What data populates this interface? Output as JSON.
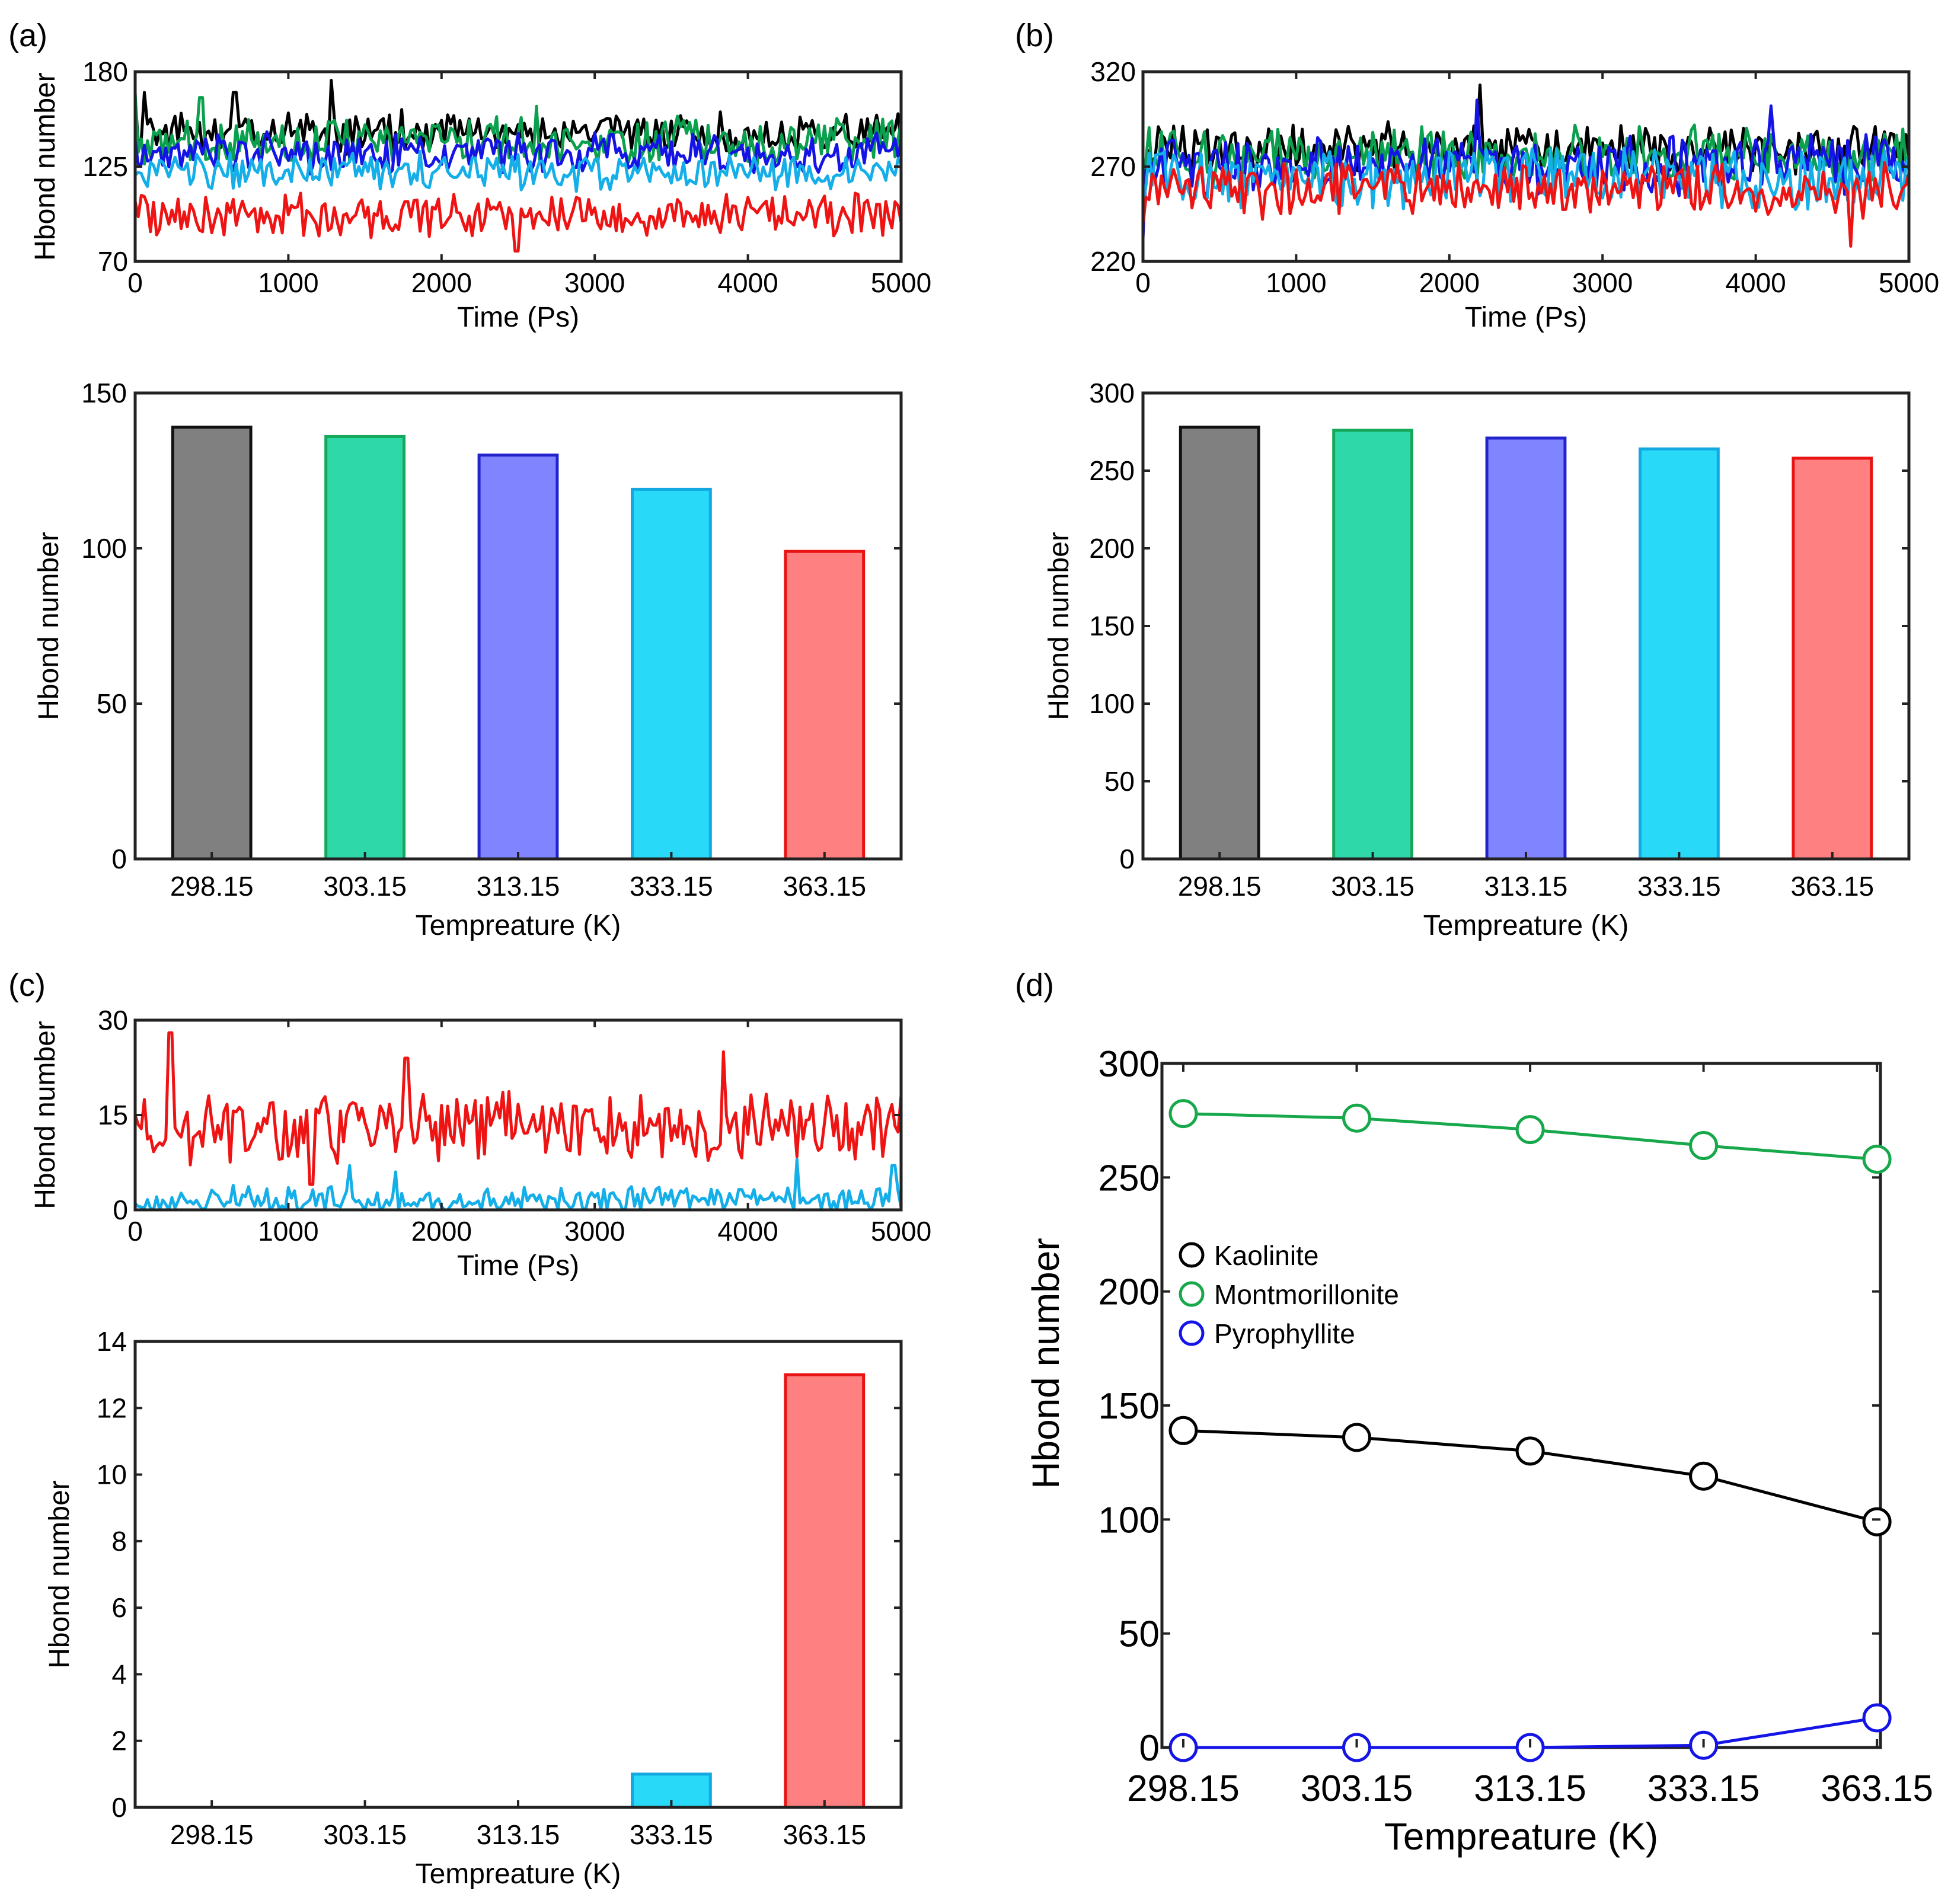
{
  "panels": {
    "a": {
      "label": "(a)"
    },
    "b": {
      "label": "(b)"
    },
    "c": {
      "label": "(c)"
    },
    "d": {
      "label": "(d)"
    }
  },
  "colors": {
    "k298": "#000000",
    "k303": "#0ba04e",
    "k313": "#1414e6",
    "k333": "#14aee8",
    "k363": "#ef1414",
    "bar298_fill": "#808080",
    "bar298_edge": "#111111",
    "bar303_fill": "#2ed8a8",
    "bar303_edge": "#16a85a",
    "bar313_fill": "#8085ff",
    "bar313_edge": "#2323cc",
    "bar333_fill": "#29d9f8",
    "bar333_edge": "#14a8e0",
    "bar363_fill": "#ff8080",
    "bar363_edge": "#e81414",
    "kaolinite": "#000000",
    "montmorillonite": "#16a84a",
    "pyrophyllite": "#1414e6"
  },
  "chart_data": [
    {
      "id": "a-top",
      "type": "line",
      "xlabel": "Time (Ps)",
      "ylabel": "Hbond number",
      "xlim": [
        0,
        5000
      ],
      "ylim": [
        70,
        180
      ],
      "xticks": [
        "0",
        "1000",
        "2000",
        "3000",
        "4000",
        "5000"
      ],
      "yticks": [
        "70",
        "125",
        "180"
      ],
      "series": [
        {
          "name": "298.15 K",
          "mean": 145,
          "amp": 10,
          "start": 165,
          "peaks": [
            [
              1280,
              175
            ],
            [
              650,
              168
            ],
            [
              60,
              168
            ]
          ]
        },
        {
          "name": "303.15 K",
          "mean": 140,
          "amp": 11,
          "start": 168,
          "peaks": [
            [
              430,
              165
            ],
            [
              2620,
              160
            ]
          ]
        },
        {
          "name": "313.15 K",
          "mean": 133,
          "amp": 10,
          "start": 140,
          "peaks": []
        },
        {
          "name": "333.15 K",
          "mean": 122,
          "amp": 9,
          "start": 120,
          "peaks": []
        },
        {
          "name": "363.15 K",
          "mean": 97,
          "amp": 10,
          "start": 105,
          "peaks": [
            [
              2490,
              76
            ]
          ]
        }
      ]
    },
    {
      "id": "a-bar",
      "type": "bar",
      "categories": [
        "298.15",
        "303.15",
        "313.15",
        "333.15",
        "363.15"
      ],
      "values": [
        139,
        136,
        130,
        119,
        99
      ],
      "xlabel": "Tempreature (K)",
      "ylabel": "Hbond number",
      "ylim": [
        0,
        150
      ],
      "yticks": [
        "0",
        "50",
        "100",
        "150"
      ]
    },
    {
      "id": "b-top",
      "type": "line",
      "xlabel": "Time (Ps)",
      "ylabel": "Hbond number",
      "xlim": [
        0,
        5000
      ],
      "ylim": [
        220,
        320
      ],
      "xticks": [
        "0",
        "1000",
        "2000",
        "3000",
        "4000",
        "5000"
      ],
      "yticks": [
        "220",
        "270",
        "320"
      ],
      "series": [
        {
          "name": "298.15 K",
          "mean": 279,
          "amp": 11,
          "start": 262,
          "peaks": [
            [
              2200,
              313
            ]
          ]
        },
        {
          "name": "303.15 K",
          "mean": 276,
          "amp": 12,
          "start": 258,
          "peaks": []
        },
        {
          "name": "313.15 K",
          "mean": 271,
          "amp": 13,
          "start": 232,
          "peaks": [
            [
              2180,
              305
            ],
            [
              4100,
              302
            ]
          ]
        },
        {
          "name": "333.15 K",
          "mean": 264,
          "amp": 13,
          "start": 250,
          "peaks": []
        },
        {
          "name": "363.15 K",
          "mean": 258,
          "amp": 12,
          "start": 240,
          "peaks": [
            [
              4620,
              228
            ]
          ]
        }
      ]
    },
    {
      "id": "b-bar",
      "type": "bar",
      "categories": [
        "298.15",
        "303.15",
        "313.15",
        "333.15",
        "363.15"
      ],
      "values": [
        278,
        276,
        271,
        264,
        258
      ],
      "xlabel": "Tempreature (K)",
      "ylabel": "Hbond number",
      "ylim": [
        0,
        300
      ],
      "yticks": [
        "0",
        "50",
        "100",
        "150",
        "200",
        "250",
        "300"
      ]
    },
    {
      "id": "c-top",
      "type": "line",
      "xlabel": "Time (Ps)",
      "ylabel": "Hbond number",
      "xlim": [
        0,
        5000
      ],
      "ylim": [
        0,
        30
      ],
      "xticks": [
        "0",
        "1000",
        "2000",
        "3000",
        "4000",
        "5000"
      ],
      "yticks": [
        "0",
        "15",
        "30"
      ],
      "series": [
        {
          "name": "298.15 K",
          "mean": 0,
          "amp": 0,
          "start": 0,
          "peaks": []
        },
        {
          "name": "303.15 K",
          "mean": 0,
          "amp": 0,
          "start": 0,
          "peaks": []
        },
        {
          "name": "313.15 K",
          "mean": 0,
          "amp": 0,
          "start": 0,
          "peaks": []
        },
        {
          "name": "333.15 K",
          "mean": 1.5,
          "amp": 1.8,
          "start": 1,
          "peaks": [
            [
              1400,
              7
            ],
            [
              1700,
              6
            ],
            [
              4320,
              8
            ],
            [
              4950,
              7
            ]
          ]
        },
        {
          "name": "363.15 K",
          "mean": 13,
          "amp": 4.5,
          "start": 15,
          "peaks": [
            [
              230,
              28
            ],
            [
              1770,
              24
            ],
            [
              3840,
              25
            ],
            [
              1150,
              4
            ]
          ]
        }
      ]
    },
    {
      "id": "c-bar",
      "type": "bar",
      "categories": [
        "298.15",
        "303.15",
        "313.15",
        "333.15",
        "363.15"
      ],
      "values": [
        0,
        0,
        0,
        1,
        13
      ],
      "xlabel": "Tempreature (K)",
      "ylabel": "Hbond number",
      "ylim": [
        0,
        14
      ],
      "yticks": [
        "0",
        "2",
        "4",
        "6",
        "8",
        "10",
        "12",
        "14"
      ]
    },
    {
      "id": "d-line",
      "type": "line",
      "categories": [
        "298.15",
        "303.15",
        "313.15",
        "333.15",
        "363.15"
      ],
      "xlabel": "Tempreature (K)",
      "ylabel": "Hbond number",
      "ylim": [
        0,
        300
      ],
      "yticks": [
        "0",
        "50",
        "100",
        "150",
        "200",
        "250",
        "300"
      ],
      "series": [
        {
          "name": "Kaolinite",
          "values": [
            139,
            136,
            130,
            119,
            99
          ]
        },
        {
          "name": "Montmorillonite",
          "values": [
            278,
            276,
            271,
            264,
            258
          ]
        },
        {
          "name": "Pyrophyllite",
          "values": [
            0,
            0,
            0,
            1,
            13
          ]
        }
      ],
      "legend": [
        "Kaolinite",
        "Montmorillonite",
        "Pyrophyllite"
      ]
    }
  ]
}
